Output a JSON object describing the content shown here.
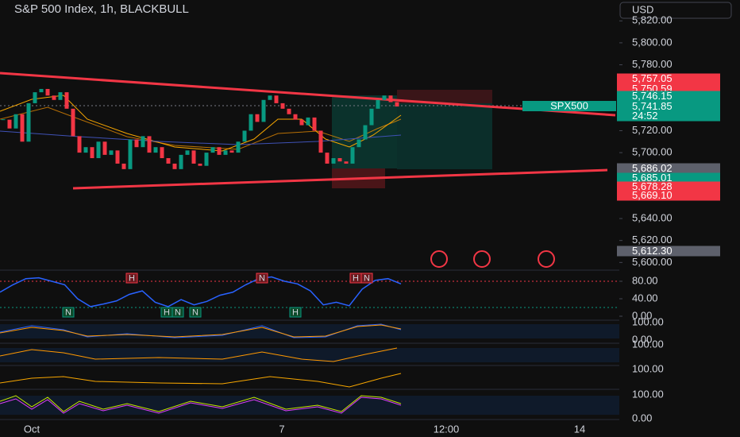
{
  "header": {
    "title": "S&P 500 Index, 1h, BLACKBULL",
    "currency": "USD"
  },
  "chart_data": {
    "type": "candlestick",
    "values": [
      5730,
      5722,
      5735,
      5710,
      5745,
      5755,
      5758,
      5752,
      5748,
      5755,
      5740,
      5715,
      5700,
      5705,
      5695,
      5710,
      5698,
      5702,
      5690,
      5685,
      5712,
      5705,
      5715,
      5700,
      5705,
      5695,
      5690,
      5685,
      5698,
      5702,
      5690,
      5688,
      5700,
      5705,
      5698,
      5702,
      5700,
      5710,
      5720,
      5735,
      5728,
      5748,
      5752,
      5745,
      5740,
      5735,
      5730,
      5725,
      5732,
      5720,
      5700,
      5690,
      5695,
      5692,
      5690,
      5705,
      5712,
      5725,
      5740,
      5748,
      5752,
      5746,
      5742
    ],
    "up_color": "#089981",
    "down_color": "#f23645",
    "ylim": [
      5593,
      5839
    ],
    "yticks": [
      {
        "value": 5820,
        "label": "5,820.00"
      },
      {
        "value": 5800,
        "label": "5,800.00"
      },
      {
        "value": 5780,
        "label": "5,780.00"
      },
      {
        "value": 5720,
        "label": "5,720.00"
      },
      {
        "value": 5700,
        "label": "5,700.00"
      },
      {
        "value": 5640,
        "label": "5,640.00"
      },
      {
        "value": 5620,
        "label": "5,620.00"
      },
      {
        "value": 5600,
        "label": "5,600.00"
      }
    ]
  },
  "price_tags": [
    {
      "label": "5,757.05"
    },
    {
      "label": "5,750.59"
    },
    {
      "label": "5,746.15"
    },
    {
      "label": "5,741.85"
    },
    {
      "label": "24:52"
    },
    {
      "label": "5,686.02"
    },
    {
      "label": "5,685.01"
    },
    {
      "label": "5,678.28"
    },
    {
      "label": "5,669.10"
    },
    {
      "label": "5,612.30"
    }
  ],
  "symbol_tag": "SPX500",
  "rsi": {
    "type": "line",
    "color": "#2962ff",
    "values": [
      55,
      72,
      86,
      88,
      80,
      72,
      40,
      22,
      28,
      35,
      50,
      58,
      32,
      22,
      38,
      26,
      34,
      48,
      55,
      72,
      86,
      90,
      80,
      74,
      58,
      26,
      32,
      24,
      62,
      82,
      86,
      74
    ],
    "ylim": [
      0,
      100
    ],
    "yticks": [
      {
        "value": 80,
        "label": "80.00"
      },
      {
        "value": 40,
        "label": "40.00"
      },
      {
        "value": 0,
        "label": "0.00"
      }
    ]
  },
  "pattern_labels_top": [
    "H",
    "N",
    "H",
    "N"
  ],
  "pattern_labels_bottom": [
    "N",
    "H",
    "N",
    "N",
    "H"
  ],
  "indicator_labels": [
    "100.00",
    "0.00",
    "100.00",
    "100.00",
    "100.00",
    "0.00"
  ],
  "x_labels": [
    "Oct",
    "7",
    "12:00",
    "14"
  ]
}
